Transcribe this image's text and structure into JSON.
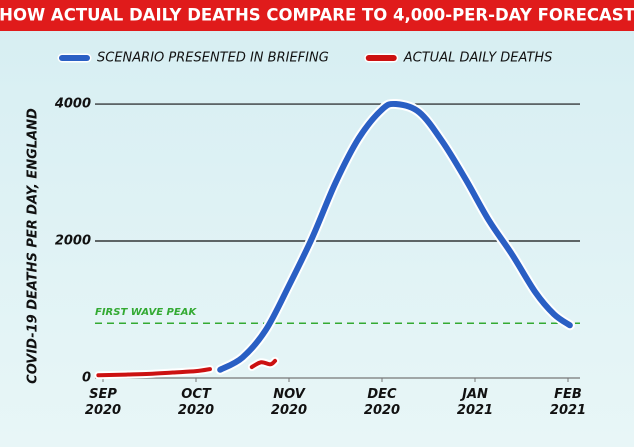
{
  "chart_data": {
    "type": "line",
    "title": "HOW ACTUAL DAILY DEATHS COMPARE TO 4,000-PER-DAY FORECAST",
    "ylabel": "COVID-19 DEATHS PER DAY, ENGLAND",
    "xlim": [
      -0.1,
      5.2
    ],
    "xticks": [
      {
        "value": 0,
        "label": "SEP 2020"
      },
      {
        "value": 1,
        "label": "OCT 2020"
      },
      {
        "value": 2,
        "label": "NOV 2020"
      },
      {
        "value": 3,
        "label": "DEC 2020"
      },
      {
        "value": 4,
        "label": "JAN 2021"
      },
      {
        "value": 5,
        "label": "FEB 2021"
      }
    ],
    "ylim": [
      0,
      4300
    ],
    "yticks": [
      0,
      2000,
      4000
    ],
    "grid": true,
    "legend": "top",
    "reference_lines": [
      {
        "label": "FIRST WAVE PEAK",
        "value": 800,
        "color": "#33aa33"
      }
    ],
    "series": [
      {
        "name": "SCENARIO PRESENTED IN BRIEFING",
        "color": "#2a5fc4",
        "x": [
          1.26,
          1.5,
          1.75,
          2.0,
          2.25,
          2.5,
          2.75,
          3.0,
          3.15,
          3.4,
          3.65,
          3.9,
          4.15,
          4.4,
          4.65,
          4.85,
          5.02
        ],
        "values": [
          120,
          300,
          700,
          1350,
          2050,
          2850,
          3500,
          3920,
          4000,
          3880,
          3450,
          2900,
          2300,
          1800,
          1250,
          930,
          770
        ]
      },
      {
        "name": "ACTUAL DAILY DEATHS",
        "color": "#cc1111",
        "x": [
          -0.05,
          0.25,
          0.5,
          0.75,
          1.0,
          1.15,
          1.4,
          1.6,
          1.7,
          1.8,
          1.85
        ],
        "values": [
          40,
          50,
          60,
          80,
          100,
          130,
          null,
          160,
          230,
          200,
          250
        ]
      }
    ]
  }
}
